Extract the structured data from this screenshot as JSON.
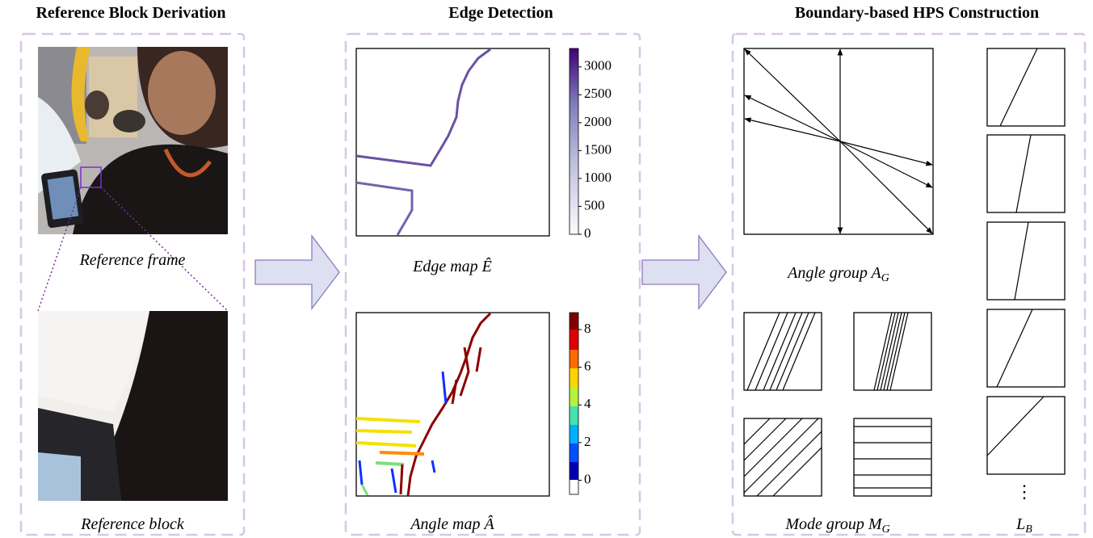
{
  "reference_panel": {
    "title": "Reference Block Derivation",
    "frame_label": "Reference frame",
    "block_label": "Reference block"
  },
  "edge_panel": {
    "title": "Edge Detection",
    "edge_map": {
      "label_text": "Edge map ",
      "label_symbol": "Ê",
      "colorbar_lim": [
        0,
        3330
      ],
      "colorbar_ticks": [
        0,
        500,
        1000,
        1500,
        2000,
        2500,
        3000
      ]
    },
    "angle_map": {
      "label_text": "Angle map ",
      "label_symbol": "Â",
      "colorbar_lim": [
        -0.75,
        8.9
      ],
      "colorbar_ticks": [
        0,
        2,
        4,
        6,
        8
      ]
    }
  },
  "hps_panel": {
    "title": "Boundary-based HPS Construction",
    "angle_group": {
      "text": "Angle group ",
      "symbol": "A",
      "subscript": "G"
    },
    "mode_group": {
      "text": "Mode group ",
      "symbol": "M",
      "subscript": "G"
    },
    "line_bank": {
      "ellipsis": "⋮",
      "symbol": "L",
      "subscript": "B"
    }
  }
}
